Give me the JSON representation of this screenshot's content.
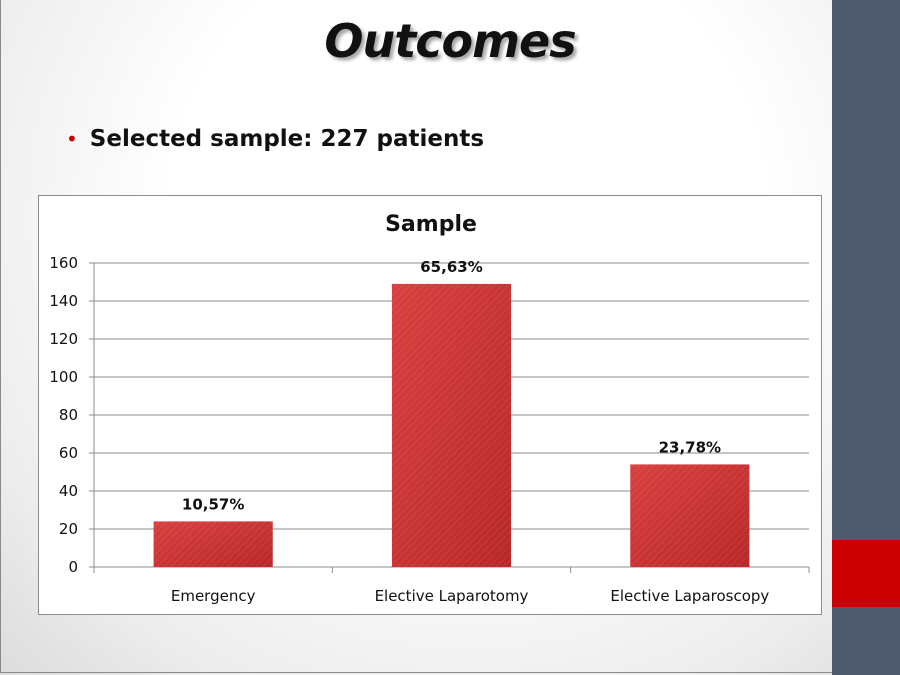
{
  "slide": {
    "title": "Outcomes",
    "bullet": "Selected sample: 227 patients"
  },
  "colors": {
    "bar": "#c83030",
    "side_band": "#4e5b6f",
    "accent": "#cc0000"
  },
  "chart_data": {
    "type": "bar",
    "title": "Sample",
    "categories": [
      "Emergency",
      "Elective Laparotomy",
      "Elective Laparoscopy"
    ],
    "values": [
      24,
      149,
      54
    ],
    "data_labels": [
      "10,57%",
      "65,63%",
      "23,78%"
    ],
    "ylim": [
      0,
      160
    ],
    "yticks": [
      0,
      20,
      40,
      60,
      80,
      100,
      120,
      140,
      160
    ],
    "grid": true,
    "legend": "none"
  }
}
